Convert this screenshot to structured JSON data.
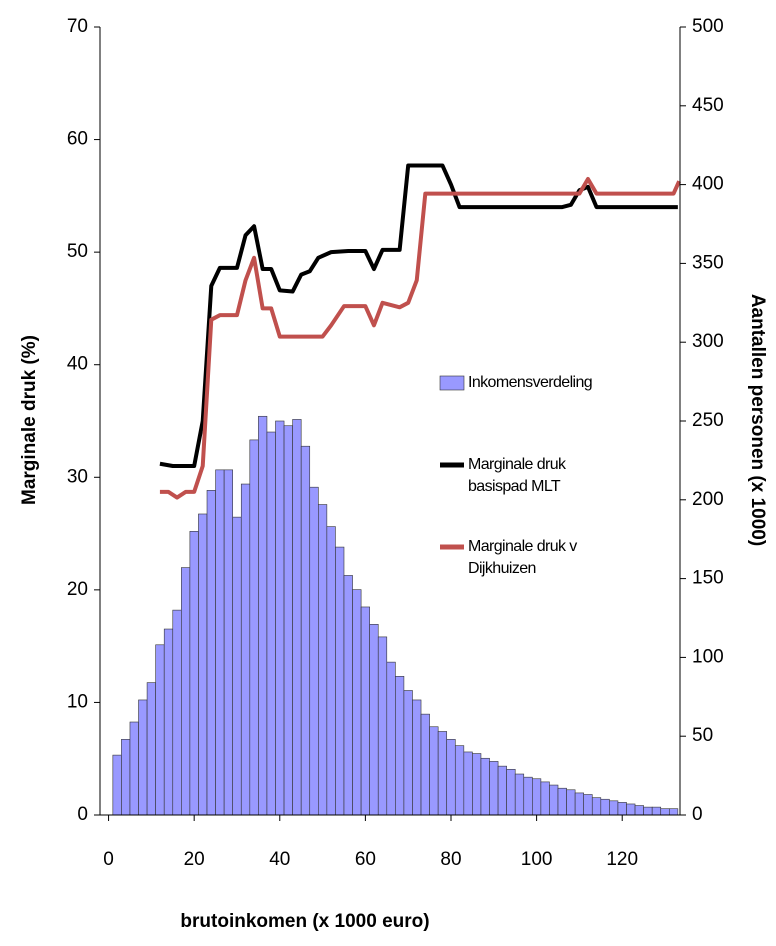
{
  "chart_data": {
    "type": "histogram",
    "xlabel": "brutoinkomen (x 1000 euro)",
    "ylabel": "Marginale druk (%)",
    "y2label": "Aantallen personen (x 1000)",
    "xlim": [
      -2,
      133.5
    ],
    "xticks": [
      0,
      20,
      40,
      60,
      80,
      100,
      120
    ],
    "ylim": [
      0,
      70
    ],
    "yticks": [
      0,
      10,
      20,
      30,
      40,
      50,
      60,
      70
    ],
    "y2lim": [
      0,
      500
    ],
    "y2ticks": [
      0,
      50,
      100,
      150,
      200,
      250,
      300,
      350,
      400,
      450,
      500
    ],
    "grid": false,
    "legend": "right",
    "series": [
      {
        "name": "Inkomensverdeling",
        "type": "histogram",
        "axis": "y2",
        "color": "#9999ff",
        "bins": [
          1,
          3,
          5,
          7,
          9,
          11,
          13,
          15,
          17,
          19,
          21,
          23,
          25,
          27,
          29,
          31,
          33,
          35,
          37,
          39,
          41,
          43,
          45,
          47,
          49,
          51,
          53,
          55,
          57,
          59,
          61,
          63,
          65,
          67,
          69,
          71,
          73,
          75,
          77,
          79,
          81,
          83,
          85,
          87,
          89,
          91,
          93,
          95,
          97,
          99,
          101,
          103,
          105,
          107,
          109,
          111,
          113,
          115,
          117,
          119,
          121,
          123,
          125,
          127,
          129,
          131,
          133
        ],
        "counts": [
          38,
          48,
          59,
          73,
          84,
          108,
          118,
          130,
          157,
          180,
          191,
          206,
          219,
          219,
          189,
          210,
          238,
          253,
          243,
          250,
          247,
          251,
          234,
          208,
          197,
          183,
          170,
          152,
          143,
          132,
          121,
          113,
          97,
          88,
          79,
          73,
          64,
          56,
          53,
          48,
          44,
          40,
          39,
          36,
          34,
          31,
          29,
          26,
          24,
          23,
          21,
          19,
          17,
          16,
          14,
          13,
          11,
          10,
          9,
          8,
          7,
          6,
          5,
          5,
          4,
          4
        ]
      },
      {
        "name": "Marginale druk basispad MLT",
        "type": "line",
        "axis": "y",
        "color": "#000000",
        "x": [
          12,
          15,
          20,
          22,
          24,
          26,
          30,
          32,
          34,
          36,
          38,
          40,
          43,
          45,
          47,
          49,
          52,
          56,
          60,
          62,
          64,
          68,
          70,
          78,
          80,
          82,
          106,
          108,
          110,
          112,
          114,
          133
        ],
        "values": [
          31.2,
          31,
          31,
          35,
          47,
          48.6,
          48.6,
          51.5,
          52.3,
          48.5,
          48.5,
          46.6,
          46.5,
          48,
          48.3,
          49.5,
          50,
          50.1,
          50.1,
          48.5,
          50.2,
          50.2,
          57.7,
          57.7,
          56,
          54,
          54,
          54.2,
          55.5,
          55.8,
          54,
          54
        ]
      },
      {
        "name": "Marginale druk v Dijkhuizen",
        "type": "line",
        "axis": "y",
        "color": "#c0504d",
        "x": [
          12,
          14,
          16,
          18,
          20,
          22,
          24,
          26,
          30,
          32,
          34,
          36,
          38,
          40,
          50,
          52,
          55,
          60,
          62,
          64,
          68,
          70,
          72,
          74,
          110,
          112,
          114,
          132,
          133.3
        ],
        "values": [
          28.7,
          28.7,
          28.2,
          28.7,
          28.7,
          31,
          44,
          44.4,
          44.4,
          47.5,
          49.5,
          45,
          45,
          42.5,
          42.5,
          43.5,
          45.2,
          45.2,
          43.5,
          45.5,
          45.1,
          45.5,
          47.5,
          55.2,
          55.2,
          56.5,
          55.2,
          55.2,
          56.3
        ]
      }
    ]
  }
}
